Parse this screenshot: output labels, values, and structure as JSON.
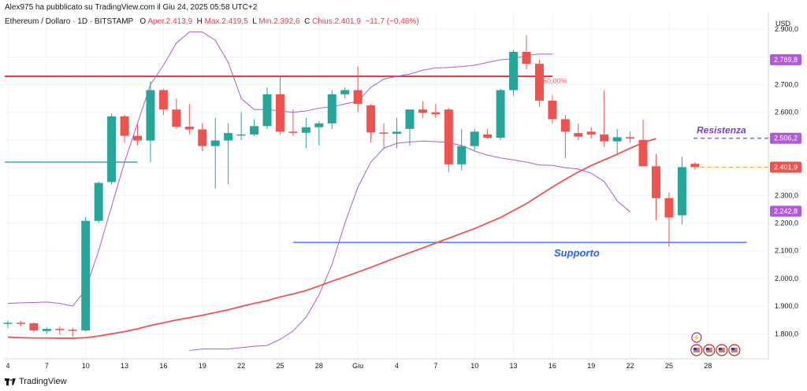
{
  "header": {
    "published": "Alex975 ha pubblicato su TradingView.com il Giu 24, 2025 05:58 UTC+2",
    "symbol": "Ethereum / Dollaro · 1D · BITSTAMP",
    "open_label": "O",
    "open_value": "Aper.2.413,9",
    "high_label": "H",
    "high_value": "Max.2.419,5",
    "low_label": "L",
    "low_value": "Min.2.392,6",
    "close_label": "C",
    "close_value": "Chius.2.401,9",
    "change_value": "−11,7 (−0,48%)"
  },
  "currency": "USD",
  "branding": "TradingView",
  "colors": {
    "up": "#26a69a",
    "down": "#ef5350",
    "ma": "#ef5350",
    "bands": "#b05ad8",
    "resistance_line": "#f23645",
    "support_line": "#2962ff",
    "grid": "#f0f3fa"
  },
  "chart_data": {
    "type": "candlestick",
    "ylim": [
      1710,
      2960
    ],
    "y_ticks": [
      "2.900,0",
      "2.800,0",
      "2.700,0",
      "2.600,0",
      "2.500,0",
      "2.400,0",
      "2.300,0",
      "2.200,0",
      "2.100,0",
      "2.000,0",
      "1.900,0",
      "1.800,0"
    ],
    "y_tick_values": [
      2900,
      2800,
      2700,
      2600,
      2500,
      2400,
      2300,
      2200,
      2100,
      2000,
      1900,
      1800
    ],
    "x_ticks": [
      "4",
      "7",
      "10",
      "13",
      "16",
      "19",
      "22",
      "25",
      "28",
      "Giu",
      "4",
      "7",
      "10",
      "13",
      "16",
      "19",
      "22",
      "25",
      "28"
    ],
    "x_tick_index": [
      0,
      3,
      6,
      9,
      12,
      15,
      18,
      21,
      24,
      27,
      30,
      33,
      36,
      39,
      42,
      45,
      48,
      51,
      54
    ],
    "candles": [
      {
        "o": 1838,
        "h": 1848,
        "l": 1820,
        "c": 1840
      },
      {
        "o": 1840,
        "h": 1846,
        "l": 1828,
        "c": 1838
      },
      {
        "o": 1838,
        "h": 1842,
        "l": 1805,
        "c": 1812
      },
      {
        "o": 1810,
        "h": 1822,
        "l": 1800,
        "c": 1818
      },
      {
        "o": 1818,
        "h": 1826,
        "l": 1797,
        "c": 1815
      },
      {
        "o": 1815,
        "h": 1822,
        "l": 1790,
        "c": 1812
      },
      {
        "o": 1812,
        "h": 2222,
        "l": 1808,
        "c": 2208
      },
      {
        "o": 2208,
        "h": 2350,
        "l": 2200,
        "c": 2345
      },
      {
        "o": 2348,
        "h": 2595,
        "l": 2340,
        "c": 2585
      },
      {
        "o": 2585,
        "h": 2592,
        "l": 2490,
        "c": 2515
      },
      {
        "o": 2515,
        "h": 2560,
        "l": 2480,
        "c": 2498
      },
      {
        "o": 2498,
        "h": 2712,
        "l": 2420,
        "c": 2680
      },
      {
        "o": 2680,
        "h": 2685,
        "l": 2590,
        "c": 2610
      },
      {
        "o": 2610,
        "h": 2650,
        "l": 2540,
        "c": 2548
      },
      {
        "o": 2548,
        "h": 2630,
        "l": 2520,
        "c": 2538
      },
      {
        "o": 2538,
        "h": 2560,
        "l": 2460,
        "c": 2478
      },
      {
        "o": 2478,
        "h": 2580,
        "l": 2325,
        "c": 2498
      },
      {
        "o": 2498,
        "h": 2560,
        "l": 2340,
        "c": 2525
      },
      {
        "o": 2518,
        "h": 2600,
        "l": 2500,
        "c": 2520
      },
      {
        "o": 2520,
        "h": 2575,
        "l": 2515,
        "c": 2550
      },
      {
        "o": 2550,
        "h": 2690,
        "l": 2540,
        "c": 2665
      },
      {
        "o": 2665,
        "h": 2728,
        "l": 2520,
        "c": 2530
      },
      {
        "o": 2530,
        "h": 2610,
        "l": 2515,
        "c": 2526
      },
      {
        "o": 2526,
        "h": 2580,
        "l": 2470,
        "c": 2546
      },
      {
        "o": 2546,
        "h": 2568,
        "l": 2480,
        "c": 2560
      },
      {
        "o": 2560,
        "h": 2680,
        "l": 2540,
        "c": 2665
      },
      {
        "o": 2665,
        "h": 2690,
        "l": 2650,
        "c": 2680
      },
      {
        "o": 2680,
        "h": 2765,
        "l": 2600,
        "c": 2630
      },
      {
        "o": 2625,
        "h": 2630,
        "l": 2490,
        "c": 2527
      },
      {
        "o": 2527,
        "h": 2560,
        "l": 2468,
        "c": 2524
      },
      {
        "o": 2522,
        "h": 2580,
        "l": 2470,
        "c": 2530
      },
      {
        "o": 2540,
        "h": 2610,
        "l": 2480,
        "c": 2610
      },
      {
        "o": 2610,
        "h": 2640,
        "l": 2580,
        "c": 2598
      },
      {
        "o": 2600,
        "h": 2630,
        "l": 2580,
        "c": 2593
      },
      {
        "o": 2610,
        "h": 2615,
        "l": 2385,
        "c": 2412
      },
      {
        "o": 2412,
        "h": 2540,
        "l": 2390,
        "c": 2478
      },
      {
        "o": 2478,
        "h": 2540,
        "l": 2460,
        "c": 2530
      },
      {
        "o": 2520,
        "h": 2540,
        "l": 2505,
        "c": 2508
      },
      {
        "o": 2508,
        "h": 2685,
        "l": 2500,
        "c": 2680
      },
      {
        "o": 2680,
        "h": 2825,
        "l": 2660,
        "c": 2818
      },
      {
        "o": 2818,
        "h": 2878,
        "l": 2755,
        "c": 2775
      },
      {
        "o": 2775,
        "h": 2790,
        "l": 2620,
        "c": 2642
      },
      {
        "o": 2642,
        "h": 2660,
        "l": 2560,
        "c": 2575
      },
      {
        "o": 2575,
        "h": 2590,
        "l": 2434,
        "c": 2530
      },
      {
        "o": 2525,
        "h": 2560,
        "l": 2500,
        "c": 2512
      },
      {
        "o": 2530,
        "h": 2545,
        "l": 2505,
        "c": 2520
      },
      {
        "o": 2520,
        "h": 2680,
        "l": 2475,
        "c": 2495
      },
      {
        "o": 2495,
        "h": 2540,
        "l": 2450,
        "c": 2510
      },
      {
        "o": 2510,
        "h": 2530,
        "l": 2490,
        "c": 2505
      },
      {
        "o": 2500,
        "h": 2575,
        "l": 2410,
        "c": 2405
      },
      {
        "o": 2405,
        "h": 2450,
        "l": 2210,
        "c": 2290
      },
      {
        "o": 2290,
        "h": 2310,
        "l": 2115,
        "c": 2220
      },
      {
        "o": 2228,
        "h": 2440,
        "l": 2195,
        "c": 2402
      },
      {
        "o": 2414,
        "h": 2420,
        "l": 2393,
        "c": 2402
      }
    ],
    "moving_average": [
      1788,
      1786,
      1785,
      1785,
      1784,
      1784,
      1786,
      1792,
      1800,
      1808,
      1818,
      1830,
      1840,
      1850,
      1858,
      1867,
      1877,
      1887,
      1899,
      1910,
      1920,
      1933,
      1944,
      1956,
      1973,
      1990,
      2006,
      2023,
      2040,
      2058,
      2076,
      2093,
      2110,
      2128,
      2145,
      2163,
      2180,
      2200,
      2220,
      2245,
      2270,
      2300,
      2330,
      2358,
      2384,
      2408,
      2428,
      2448,
      2470,
      2490,
      2505
    ],
    "upper_band": [
      1910,
      1912,
      1913,
      1915,
      1910,
      1900,
      1960,
      2100,
      2260,
      2420,
      2560,
      2700,
      2770,
      2850,
      2890,
      2890,
      2860,
      2780,
      2650,
      2610,
      2610,
      2605,
      2600,
      2605,
      2615,
      2620,
      2630,
      2640,
      2690,
      2720,
      2730,
      2738,
      2752,
      2760,
      2762,
      2765,
      2770,
      2780,
      2790,
      2793,
      2805,
      2810,
      2810
    ],
    "lower_band": [
      1740,
      1745,
      1745,
      1745,
      1750,
      1755,
      1758,
      1780,
      1810,
      1860,
      1940,
      2050,
      2200,
      2330,
      2420,
      2470,
      2488,
      2493,
      2496,
      2494,
      2491,
      2480,
      2460,
      2445,
      2435,
      2428,
      2420,
      2410,
      2408,
      2400,
      2395,
      2380,
      2350,
      2280,
      2240
    ],
    "upper_band_start_index": 0,
    "lower_band_start_index": 14,
    "horizontal_lines": [
      {
        "name": "resistance-line",
        "value": 2730,
        "x_start_index": -1,
        "x_end_index": 42
      },
      {
        "name": "support-line",
        "value": 2130,
        "x_start_index": 22,
        "x_end_index": 57
      },
      {
        "name": "green-level-line",
        "value": 2420,
        "x_start_index": -1,
        "x_end_index": 10
      }
    ],
    "annotations": [
      {
        "name": "resistance-label",
        "text": "Resistenza",
        "color": "#7b3fbf"
      },
      {
        "name": "support-label",
        "text": "Supporto",
        "color": "#2962ff"
      },
      {
        "name": "fib-label",
        "text": "50,00%",
        "color": "#f06060"
      }
    ],
    "price_badges": [
      {
        "text": "2.789,8",
        "value": 2789.8,
        "color": "#b05ad8"
      },
      {
        "text": "2.506,2",
        "value": 2506.2,
        "color": "#b05ad8"
      },
      {
        "text": "2.401,9",
        "value": 2401.9,
        "color": "#ef5350"
      },
      {
        "text": "2.242,8",
        "value": 2242.8,
        "color": "#b05ad8"
      }
    ]
  }
}
